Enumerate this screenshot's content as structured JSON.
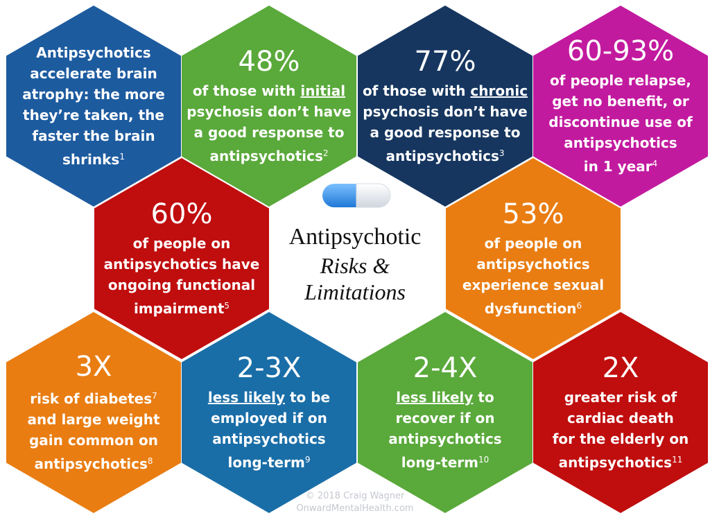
{
  "center": {
    "title": "Antipsychotic",
    "subtitle_1": "Risks &",
    "subtitle_2": "Limitations"
  },
  "copyright": {
    "line_1": "© 2018 Craig Wagner",
    "line_2": "OnwardMentalHealth.com"
  },
  "hexagons": [
    {
      "color": "#1d5b9f",
      "headline": null,
      "lines": [
        [
          {
            "t": "Antipsychotics"
          }
        ],
        [
          {
            "t": "accelerate brain"
          }
        ],
        [
          {
            "t": "atrophy: the more"
          }
        ],
        [
          {
            "t": "they’re taken, the"
          }
        ],
        [
          {
            "t": "faster the brain"
          }
        ],
        [
          {
            "t": "shrinks"
          },
          {
            "t": "1",
            "sup": true
          }
        ]
      ]
    },
    {
      "color": "#5aa93b",
      "headline": "48%",
      "lines": [
        [
          {
            "t": "of those with "
          },
          {
            "t": "initial",
            "u": true
          }
        ],
        [
          {
            "t": "psychosis don’t have"
          }
        ],
        [
          {
            "t": "a good response to"
          }
        ],
        [
          {
            "t": "antipsychotics"
          },
          {
            "t": "2",
            "sup": true
          }
        ]
      ]
    },
    {
      "color": "#16365f",
      "headline": "77%",
      "lines": [
        [
          {
            "t": "of those with "
          },
          {
            "t": "chronic",
            "u": true
          }
        ],
        [
          {
            "t": "psychosis don’t have"
          }
        ],
        [
          {
            "t": "a good response to"
          }
        ],
        [
          {
            "t": "antipsychotics"
          },
          {
            "t": "3",
            "sup": true
          }
        ]
      ]
    },
    {
      "color": "#c21a9f",
      "headline": "60-93%",
      "lines": [
        [
          {
            "t": "of people relapse,"
          }
        ],
        [
          {
            "t": "get no benefit, or"
          }
        ],
        [
          {
            "t": "discontinue use of"
          }
        ],
        [
          {
            "t": "antipsychotics"
          }
        ],
        [
          {
            "t": "in 1 year"
          },
          {
            "t": "4",
            "sup": true
          }
        ]
      ]
    },
    {
      "color": "#c00d0e",
      "headline": "60%",
      "lines": [
        [
          {
            "t": "of people on"
          }
        ],
        [
          {
            "t": "antipsychotics have"
          }
        ],
        [
          {
            "t": "ongoing functional"
          }
        ],
        [
          {
            "t": "impairment"
          },
          {
            "t": "5",
            "sup": true
          }
        ]
      ]
    },
    {
      "color": "#e97d12",
      "headline": "53%",
      "lines": [
        [
          {
            "t": "of people on"
          }
        ],
        [
          {
            "t": "antipsychotics"
          }
        ],
        [
          {
            "t": "experience sexual"
          }
        ],
        [
          {
            "t": "dysfunction"
          },
          {
            "t": "6",
            "sup": true
          }
        ]
      ]
    },
    {
      "color": "#e97d12",
      "headline": "3X",
      "lines": [
        [
          {
            "t": "risk of diabetes"
          },
          {
            "t": "7",
            "sup": true
          }
        ],
        [
          {
            "t": "and large weight"
          }
        ],
        [
          {
            "t": "gain common on"
          }
        ],
        [
          {
            "t": "antipsychotics"
          },
          {
            "t": "8",
            "sup": true
          }
        ]
      ]
    },
    {
      "color": "#1a6ea7",
      "headline": "2-3X",
      "lines": [
        [
          {
            "t": "less likely",
            "u": true
          },
          {
            "t": " to be"
          }
        ],
        [
          {
            "t": "employed if on"
          }
        ],
        [
          {
            "t": "antipsychotics"
          }
        ],
        [
          {
            "t": "long-term"
          },
          {
            "t": "9",
            "sup": true
          }
        ]
      ]
    },
    {
      "color": "#5aa93b",
      "headline": "2-4X",
      "lines": [
        [
          {
            "t": "less likely",
            "u": true
          },
          {
            "t": " to"
          }
        ],
        [
          {
            "t": "recover if on"
          }
        ],
        [
          {
            "t": "antipsychotics"
          }
        ],
        [
          {
            "t": "long-term"
          },
          {
            "t": "10",
            "sup": true
          }
        ]
      ]
    },
    {
      "color": "#c00d0e",
      "headline": "2X",
      "lines": [
        [
          {
            "t": "greater risk of"
          }
        ],
        [
          {
            "t": "cardiac death"
          }
        ],
        [
          {
            "t": "for the elderly on"
          }
        ],
        [
          {
            "t": "antipsychotics"
          },
          {
            "t": "11",
            "sup": true
          }
        ]
      ]
    }
  ]
}
